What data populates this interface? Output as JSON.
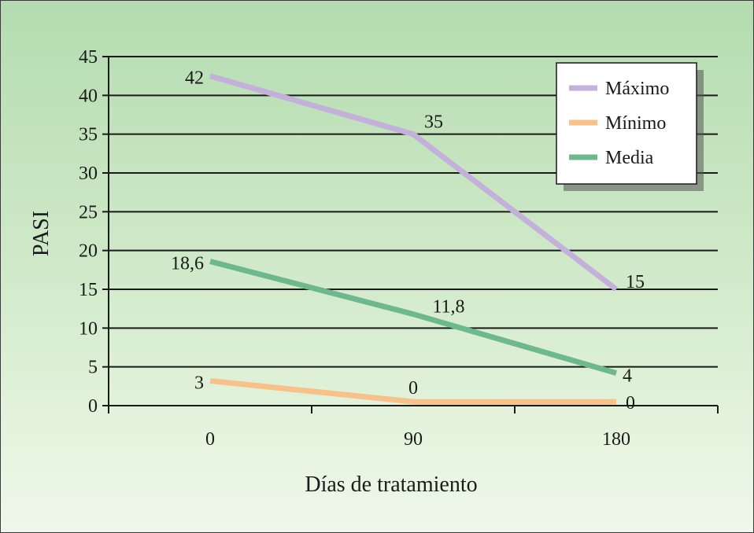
{
  "chart_data": {
    "type": "line",
    "title": "",
    "xlabel": "Días de tratamiento",
    "ylabel": "PASI",
    "categories": [
      "0",
      "90",
      "180"
    ],
    "ylim": [
      0,
      45
    ],
    "yticks": [
      "0",
      "5",
      "10",
      "15",
      "20",
      "25",
      "30",
      "35",
      "40",
      "45"
    ],
    "grid": true,
    "legend_position": "top-right",
    "series": [
      {
        "name": "Máximo",
        "color": "#c3b1db",
        "values": [
          42.5,
          35,
          15
        ],
        "labels": [
          "42",
          "35",
          "15"
        ]
      },
      {
        "name": "Mínimo",
        "color": "#f9c18a",
        "values": [
          3.2,
          0.5,
          0.5
        ],
        "labels": [
          "3",
          "0",
          "0"
        ]
      },
      {
        "name": "Media",
        "color": "#6eb88e",
        "values": [
          18.6,
          11.8,
          4.2
        ],
        "labels": [
          "18,6",
          "11,8",
          "4"
        ]
      }
    ]
  }
}
